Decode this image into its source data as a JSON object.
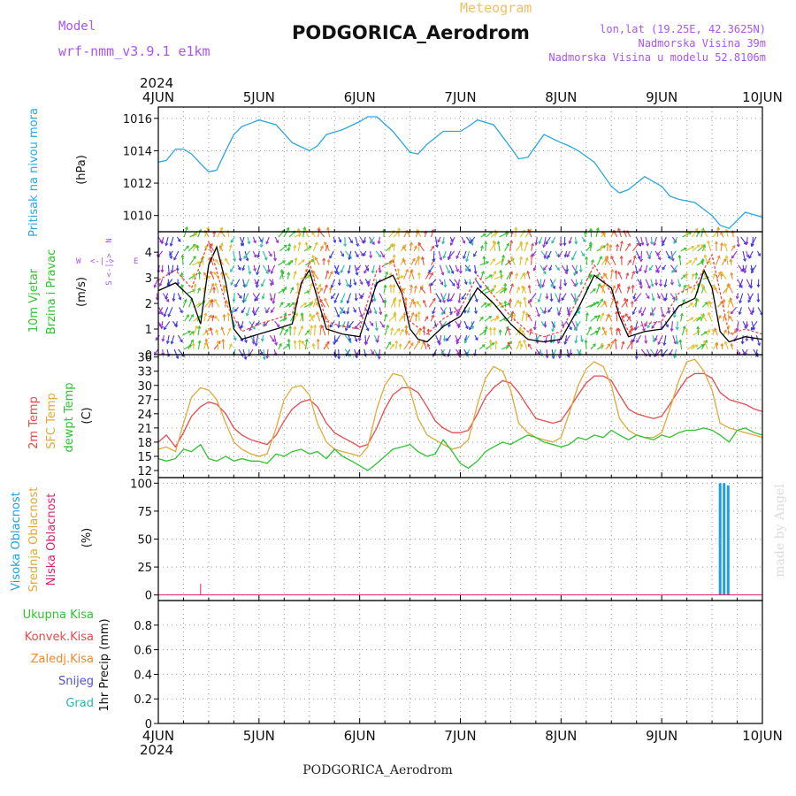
{
  "header": {
    "model_label": "Model",
    "model_name": "wrf-nmm_v3.9.1 e1km",
    "meteogram_label": "Meteogram",
    "station": "PODGORICA_Aerodrom",
    "lonlat": "lon,lat (19.25E, 42.3625N)",
    "elevation": "Nadmorska Visina 39m",
    "model_elevation": "Nadmorska Visina u modelu 52.8106m",
    "year": "2024",
    "footer_station": "PODGORICA_Aerodrom",
    "credit": "made by Angel"
  },
  "colors": {
    "pressure": "#2aa7e0",
    "temp2m": "#e84a4a",
    "sfc": "#e0a93a",
    "dewpt": "#2fc32f",
    "cloud_high": "#1e9fe0",
    "cloud_mid": "#e0a93a",
    "cloud_low": "#e0206e",
    "wind_speed": "#000000",
    "wind_gust": "#e84a4a",
    "label_purple": "#a855f7",
    "legend_green": "#2fc32f",
    "legend_red": "#e84a4a",
    "legend_orange": "#f08a2a",
    "legend_blue": "#5050e0",
    "legend_cyan": "#2ab3b3"
  },
  "labels": {
    "pressure_title": "Pritisak na nivou mora",
    "pressure_unit": "(hPa)",
    "wind_title1": "10m Vjetar",
    "wind_title2": "Brzina i Pravac",
    "wind_unit": "(m/s)",
    "compass_n": "N",
    "compass_s": "S",
    "compass_e": "E",
    "compass_w": "W",
    "temp_2m": "2m Temp",
    "temp_sfc": "SFC Temp",
    "temp_dew": "dewpt Temp",
    "temp_unit": "(C)",
    "cloud_high": "Visoka Oblacnost",
    "cloud_mid": "Srednja Oblacnost",
    "cloud_low": "Niska Oblacnost",
    "cloud_unit": "(%)",
    "precip_unit": "1hr Precip (mm)",
    "precip_total": "Ukupna Kisa",
    "precip_conv": "Konvek.Kisa",
    "precip_frozen": "Zaledj.Kisa",
    "precip_snow": "Snijeg",
    "precip_hail": "Grad"
  },
  "chart_data": {
    "type": "line",
    "x_ticks": [
      "4JUN",
      "5JUN",
      "6JUN",
      "7JUN",
      "8JUN",
      "9JUN",
      "10JUN"
    ],
    "x_range_days": [
      0,
      6
    ],
    "panels": [
      {
        "name": "pressure",
        "ylim": [
          1009,
          1016.7
        ],
        "yticks": [
          1010,
          1012,
          1014,
          1016
        ],
        "series": [
          {
            "name": "Pritisak na nivou mora",
            "x": [
              0,
              0.08,
              0.17,
              0.25,
              0.33,
              0.42,
              0.5,
              0.58,
              0.67,
              0.75,
              0.83,
              0.92,
              1.0,
              1.17,
              1.33,
              1.5,
              1.58,
              1.67,
              1.83,
              2.0,
              2.08,
              2.17,
              2.33,
              2.5,
              2.58,
              2.67,
              2.83,
              3.0,
              3.08,
              3.17,
              3.33,
              3.5,
              3.58,
              3.67,
              3.83,
              4.0,
              4.08,
              4.17,
              4.33,
              4.5,
              4.58,
              4.67,
              4.83,
              5.0,
              5.08,
              5.17,
              5.33,
              5.5,
              5.58,
              5.67,
              5.83,
              6.0
            ],
            "values": [
              1013.3,
              1013.4,
              1014.1,
              1014.1,
              1013.8,
              1013.2,
              1012.7,
              1012.8,
              1014.0,
              1015.0,
              1015.5,
              1015.7,
              1015.9,
              1015.6,
              1014.5,
              1014.0,
              1014.3,
              1015.0,
              1015.3,
              1015.8,
              1016.1,
              1016.1,
              1015.2,
              1013.9,
              1013.8,
              1014.4,
              1015.2,
              1015.2,
              1015.5,
              1015.9,
              1015.6,
              1014.2,
              1013.5,
              1013.6,
              1015.0,
              1014.5,
              1014.3,
              1014.0,
              1013.3,
              1011.8,
              1011.4,
              1011.6,
              1012.4,
              1011.8,
              1011.2,
              1011.0,
              1010.8,
              1010.0,
              1009.4,
              1009.2,
              1010.2,
              1009.9
            ]
          }
        ]
      },
      {
        "name": "wind",
        "ylim": [
          0,
          4.8
        ],
        "yticks": [
          0,
          1,
          2,
          3,
          4
        ],
        "series": [
          {
            "name": "wind speed",
            "x": [
              0,
              0.17,
              0.33,
              0.42,
              0.5,
              0.58,
              0.67,
              0.75,
              0.83,
              1.0,
              1.17,
              1.33,
              1.42,
              1.5,
              1.58,
              1.67,
              1.83,
              2.0,
              2.17,
              2.33,
              2.42,
              2.5,
              2.58,
              2.67,
              2.83,
              3.0,
              3.17,
              3.33,
              3.5,
              3.58,
              3.67,
              3.83,
              4.0,
              4.17,
              4.33,
              4.5,
              4.58,
              4.67,
              4.83,
              5.0,
              5.17,
              5.33,
              5.42,
              5.5,
              5.58,
              5.67,
              5.83,
              6.0
            ],
            "values": [
              2.5,
              2.8,
              2.2,
              1.2,
              3.5,
              4.2,
              2.8,
              1.0,
              0.6,
              0.8,
              1.0,
              1.2,
              2.8,
              3.3,
              2.2,
              1.0,
              0.8,
              0.7,
              2.8,
              3.1,
              2.4,
              1.0,
              0.6,
              0.5,
              1.1,
              1.5,
              2.6,
              2.0,
              1.2,
              0.9,
              0.6,
              0.5,
              0.6,
              1.8,
              3.1,
              2.6,
              1.5,
              0.7,
              0.9,
              1.0,
              1.9,
              2.2,
              3.3,
              2.6,
              0.9,
              0.5,
              0.7,
              0.6
            ]
          },
          {
            "name": "wind gust",
            "x": [
              0,
              0.17,
              0.33,
              0.5,
              0.67,
              0.83,
              1.0,
              1.17,
              1.33,
              1.5,
              1.67,
              1.83,
              2.0,
              2.17,
              2.33,
              2.5,
              2.67,
              2.83,
              3.0,
              3.17,
              3.33,
              3.5,
              3.67,
              3.83,
              4.0,
              4.17,
              4.33,
              4.5,
              4.67,
              4.83,
              5.0,
              5.17,
              5.33,
              5.5,
              5.67,
              5.83,
              6.0
            ],
            "values": [
              2.9,
              3.3,
              2.6,
              4.4,
              2.0,
              0.9,
              1.2,
              1.4,
              1.6,
              3.6,
              1.3,
              1.1,
              1.0,
              3.3,
              3.7,
              1.3,
              0.8,
              1.4,
              1.8,
              3.1,
              2.3,
              1.5,
              0.9,
              0.7,
              0.9,
              2.2,
              3.5,
              2.4,
              0.9,
              1.2,
              1.3,
              2.4,
              2.7,
              3.9,
              0.8,
              1.0,
              0.8
            ]
          }
        ]
      },
      {
        "name": "temperature",
        "ylim": [
          10.5,
          36.5
        ],
        "yticks": [
          12,
          15,
          18,
          21,
          24,
          27,
          30,
          33,
          36
        ],
        "series": [
          {
            "name": "2m Temp",
            "x": [
              0,
              0.08,
              0.17,
              0.25,
              0.33,
              0.42,
              0.5,
              0.58,
              0.67,
              0.75,
              0.83,
              0.92,
              1.0,
              1.08,
              1.17,
              1.25,
              1.33,
              1.42,
              1.5,
              1.58,
              1.67,
              1.75,
              1.83,
              1.92,
              2.0,
              2.08,
              2.17,
              2.25,
              2.33,
              2.42,
              2.5,
              2.58,
              2.67,
              2.75,
              2.83,
              2.92,
              3.0,
              3.08,
              3.17,
              3.25,
              3.33,
              3.42,
              3.5,
              3.58,
              3.67,
              3.75,
              3.83,
              3.92,
              4.0,
              4.08,
              4.17,
              4.25,
              4.33,
              4.42,
              4.5,
              4.58,
              4.67,
              4.75,
              4.83,
              4.92,
              5.0,
              5.08,
              5.17,
              5.25,
              5.33,
              5.42,
              5.5,
              5.58,
              5.67,
              5.75,
              5.83,
              5.92,
              6.0
            ],
            "values": [
              18.0,
              19.5,
              17.0,
              20.0,
              23.5,
              25.5,
              26.5,
              26.0,
              24.0,
              21.0,
              19.5,
              18.5,
              18.0,
              17.5,
              19.5,
              22.5,
              25.0,
              26.5,
              27.0,
              25.5,
              22.0,
              20.0,
              19.0,
              18.0,
              17.0,
              17.5,
              21.0,
              25.0,
              28.0,
              29.5,
              29.5,
              28.5,
              25.5,
              22.5,
              21.0,
              20.0,
              20.0,
              20.5,
              24.0,
              27.5,
              29.5,
              31.0,
              30.5,
              28.5,
              25.5,
              23.0,
              22.5,
              22.0,
              22.5,
              25.0,
              28.0,
              30.5,
              32.0,
              32.0,
              31.0,
              28.0,
              25.0,
              24.0,
              23.5,
              23.0,
              23.5,
              26.0,
              29.0,
              31.5,
              32.5,
              32.5,
              31.5,
              28.5,
              27.0,
              26.5,
              26.0,
              25.0,
              24.5
            ]
          },
          {
            "name": "SFC Temp",
            "x": [
              0,
              0.08,
              0.17,
              0.25,
              0.33,
              0.42,
              0.5,
              0.58,
              0.67,
              0.75,
              0.83,
              0.92,
              1.0,
              1.08,
              1.17,
              1.25,
              1.33,
              1.42,
              1.5,
              1.58,
              1.67,
              1.75,
              1.83,
              1.92,
              2.0,
              2.08,
              2.17,
              2.25,
              2.33,
              2.42,
              2.5,
              2.58,
              2.67,
              2.75,
              2.83,
              2.92,
              3.0,
              3.08,
              3.17,
              3.25,
              3.33,
              3.42,
              3.5,
              3.58,
              3.67,
              3.75,
              3.83,
              3.92,
              4.0,
              4.08,
              4.17,
              4.25,
              4.33,
              4.42,
              4.5,
              4.58,
              4.67,
              4.75,
              4.83,
              4.92,
              5.0,
              5.08,
              5.17,
              5.25,
              5.33,
              5.42,
              5.5,
              5.58,
              5.67,
              5.75,
              5.83,
              5.92,
              6.0
            ],
            "values": [
              16.5,
              17.0,
              16.0,
              22.0,
              27.5,
              29.5,
              29.0,
              27.0,
              22.0,
              18.0,
              16.5,
              15.5,
              15.0,
              15.5,
              21.0,
              27.0,
              29.5,
              30.0,
              28.0,
              22.0,
              18.0,
              16.5,
              16.0,
              15.5,
              15.0,
              17.0,
              25.0,
              30.0,
              32.5,
              32.0,
              29.0,
              23.0,
              19.5,
              18.5,
              17.5,
              16.5,
              17.0,
              18.5,
              26.0,
              31.5,
              34.0,
              33.0,
              29.0,
              22.0,
              20.0,
              19.0,
              18.5,
              18.0,
              19.0,
              24.0,
              30.0,
              33.5,
              35.0,
              34.0,
              30.0,
              23.0,
              20.5,
              19.5,
              19.0,
              19.0,
              20.0,
              25.0,
              31.0,
              35.0,
              35.5,
              33.0,
              29.0,
              22.0,
              21.0,
              20.5,
              20.0,
              19.5,
              19.0
            ]
          },
          {
            "name": "dewpt Temp",
            "x": [
              0,
              0.08,
              0.17,
              0.25,
              0.33,
              0.42,
              0.5,
              0.58,
              0.67,
              0.75,
              0.83,
              0.92,
              1.0,
              1.08,
              1.17,
              1.25,
              1.33,
              1.42,
              1.5,
              1.58,
              1.67,
              1.75,
              1.83,
              1.92,
              2.0,
              2.08,
              2.17,
              2.25,
              2.33,
              2.42,
              2.5,
              2.58,
              2.67,
              2.75,
              2.83,
              2.92,
              3.0,
              3.08,
              3.17,
              3.25,
              3.33,
              3.42,
              3.5,
              3.58,
              3.67,
              3.75,
              3.83,
              3.92,
              4.0,
              4.08,
              4.17,
              4.25,
              4.33,
              4.42,
              4.5,
              4.58,
              4.67,
              4.75,
              4.83,
              4.92,
              5.0,
              5.08,
              5.17,
              5.25,
              5.33,
              5.42,
              5.5,
              5.58,
              5.67,
              5.75,
              5.83,
              5.92,
              6.0
            ],
            "values": [
              14.5,
              14.0,
              14.5,
              16.5,
              16.0,
              17.5,
              14.5,
              14.0,
              15.0,
              14.0,
              14.5,
              14.0,
              14.0,
              13.5,
              15.5,
              15.0,
              16.0,
              16.5,
              15.5,
              16.0,
              14.5,
              16.5,
              15.0,
              14.0,
              13.0,
              12.0,
              13.5,
              15.0,
              16.5,
              17.0,
              17.5,
              16.0,
              15.0,
              15.5,
              18.5,
              16.0,
              13.5,
              12.5,
              14.0,
              16.0,
              17.0,
              18.0,
              17.5,
              18.5,
              19.5,
              19.0,
              18.0,
              17.5,
              17.0,
              17.5,
              19.0,
              18.5,
              19.5,
              19.0,
              20.5,
              19.5,
              18.5,
              19.5,
              19.0,
              18.5,
              19.5,
              19.0,
              20.0,
              20.5,
              20.5,
              21.0,
              20.5,
              19.5,
              18.0,
              20.5,
              21.0,
              20.0,
              19.5
            ]
          }
        ]
      },
      {
        "name": "cloud",
        "ylim": [
          -5,
          105
        ],
        "yticks": [
          0,
          25,
          50,
          75,
          100
        ],
        "series": [
          {
            "name": "Visoka Oblacnost",
            "x": [
              5.58,
              5.62,
              5.66
            ],
            "values": [
              100,
              100,
              98
            ]
          },
          {
            "name": "Srednja Oblacnost",
            "x": [],
            "values": []
          },
          {
            "name": "Niska Oblacnost",
            "x": [
              0.42
            ],
            "values": [
              10
            ]
          }
        ]
      },
      {
        "name": "precipitation",
        "ylim": [
          0,
          1.0
        ],
        "yticks": [
          0,
          0.2,
          0.4,
          0.6,
          0.8
        ],
        "series": [
          {
            "name": "Ukupna Kisa",
            "x": [],
            "values": []
          },
          {
            "name": "Konvek.Kisa",
            "x": [],
            "values": []
          },
          {
            "name": "Zaledj.Kisa",
            "x": [],
            "values": []
          },
          {
            "name": "Snijeg",
            "x": [],
            "values": []
          },
          {
            "name": "Grad",
            "x": [],
            "values": []
          }
        ]
      }
    ]
  }
}
